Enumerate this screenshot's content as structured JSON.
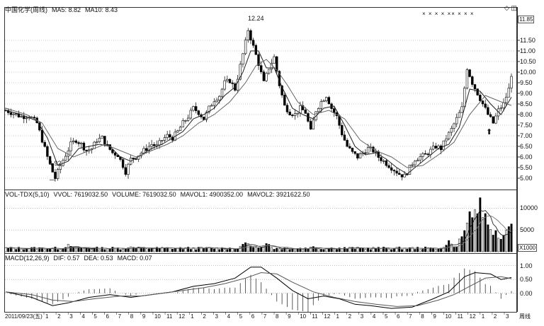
{
  "price_panel": {
    "title": "中国化学(周线)",
    "ma5": "MA5: 8.82",
    "ma10": "MA10: 8.43",
    "high_label": "12.24",
    "low_label": "4.92",
    "last_label": "11.85",
    "corner_icons": "◇ ◫",
    "markers": "× × × × ×× × × ×",
    "y_ticks": [
      "11.50",
      "11.00",
      "10.50",
      "10.00",
      "9.50",
      "9.00",
      "8.50",
      "8.00",
      "7.50",
      "7.00",
      "6.50",
      "6.00",
      "5.50",
      "5.00"
    ]
  },
  "volume_panel": {
    "title": "VOL-TDX(5,10)",
    "vvol": "VVOL: 7619032.50",
    "volume": "VOLUME: 7619032.50",
    "mavol1": "MAVOL1: 4900352.00",
    "mavol2": "MAVOL2: 3921622.50",
    "y_ticks": [
      "10000",
      "5000"
    ],
    "unit": "X1000"
  },
  "macd_panel": {
    "title": "MACD(12,26,9)",
    "dif": "DIF: 0.57",
    "dea": "DEA: 0.53",
    "macd": "MACD: 0.07",
    "y_ticks": [
      "1.00",
      "0.50",
      "0.00"
    ]
  },
  "x_axis": {
    "start": "2011/09/23(五)",
    "months": [
      "1",
      "2",
      "3",
      "4",
      "5",
      "6",
      "7",
      "8",
      "9",
      "10",
      "11",
      "12",
      "1",
      "2",
      "3",
      "4",
      "5",
      "6",
      "7",
      "8",
      "9",
      "10",
      "11",
      "12",
      "1",
      "2",
      "3",
      "4",
      "5",
      "6",
      "7",
      "8",
      "9",
      "10",
      "11",
      "12",
      "1",
      "2",
      "3"
    ],
    "period": "周线"
  },
  "chart_data": [
    {
      "type": "candlestick",
      "title": "中国化学(周线)",
      "series": [
        {
          "name": "MA5",
          "last": 8.82
        },
        {
          "name": "MA10",
          "last": 8.43
        }
      ],
      "annotations": {
        "high": 12.24,
        "low": 4.92
      },
      "ylim": [
        4.6,
        12.4
      ],
      "close_path": [
        [
          0,
          8.2
        ],
        [
          3,
          8.05
        ],
        [
          6,
          7.9
        ],
        [
          9,
          7.95
        ],
        [
          12,
          7.6
        ],
        [
          14,
          6.8
        ],
        [
          16,
          6.0
        ],
        [
          18,
          5.3
        ],
        [
          19,
          5.0
        ],
        [
          21,
          5.6
        ],
        [
          23,
          6.1
        ],
        [
          25,
          6.6
        ],
        [
          27,
          6.8
        ],
        [
          29,
          6.6
        ],
        [
          31,
          6.3
        ],
        [
          33,
          6.4
        ],
        [
          35,
          6.8
        ],
        [
          37,
          6.9
        ],
        [
          39,
          6.5
        ],
        [
          41,
          6.2
        ],
        [
          43,
          6.1
        ],
        [
          45,
          5.6
        ],
        [
          46,
          5.3
        ],
        [
          48,
          5.9
        ],
        [
          50,
          6.0
        ],
        [
          52,
          6.2
        ],
        [
          54,
          6.4
        ],
        [
          56,
          6.6
        ],
        [
          58,
          6.5
        ],
        [
          60,
          6.8
        ],
        [
          62,
          7.0
        ],
        [
          64,
          6.9
        ],
        [
          66,
          7.2
        ],
        [
          68,
          7.6
        ],
        [
          70,
          7.9
        ],
        [
          72,
          8.3
        ],
        [
          74,
          8.1
        ],
        [
          76,
          7.8
        ],
        [
          78,
          8.3
        ],
        [
          80,
          8.7
        ],
        [
          82,
          8.9
        ],
        [
          84,
          9.5
        ],
        [
          86,
          9.6
        ],
        [
          88,
          9.2
        ],
        [
          90,
          10.3
        ],
        [
          92,
          11.4
        ],
        [
          93,
          12.0
        ],
        [
          95,
          11.2
        ],
        [
          97,
          10.4
        ],
        [
          99,
          9.5
        ],
        [
          101,
          10.2
        ],
        [
          103,
          10.7
        ],
        [
          105,
          9.4
        ],
        [
          107,
          8.4
        ],
        [
          109,
          8.1
        ],
        [
          111,
          8.0
        ],
        [
          113,
          8.3
        ],
        [
          115,
          8.1
        ],
        [
          117,
          7.2
        ],
        [
          119,
          8.2
        ],
        [
          121,
          8.6
        ],
        [
          123,
          8.9
        ],
        [
          125,
          8.3
        ],
        [
          127,
          7.9
        ],
        [
          129,
          7.1
        ],
        [
          131,
          6.5
        ],
        [
          133,
          6.2
        ],
        [
          135,
          6.0
        ],
        [
          137,
          6.2
        ],
        [
          139,
          6.4
        ],
        [
          141,
          6.3
        ],
        [
          143,
          6.0
        ],
        [
          145,
          5.8
        ],
        [
          147,
          5.6
        ],
        [
          149,
          5.4
        ],
        [
          151,
          5.2
        ],
        [
          153,
          5.1
        ],
        [
          155,
          5.5
        ],
        [
          157,
          5.9
        ],
        [
          159,
          6.0
        ],
        [
          161,
          6.1
        ],
        [
          163,
          6.3
        ],
        [
          165,
          6.5
        ],
        [
          167,
          6.4
        ],
        [
          169,
          6.9
        ],
        [
          171,
          7.3
        ],
        [
          173,
          7.8
        ],
        [
          175,
          8.3
        ],
        [
          177,
          10.2
        ],
        [
          179,
          9.5
        ],
        [
          181,
          9.0
        ],
        [
          183,
          8.5
        ],
        [
          185,
          8.0
        ],
        [
          187,
          7.6
        ],
        [
          189,
          8.2
        ],
        [
          191,
          8.5
        ],
        [
          193,
          9.2
        ],
        [
          194,
          9.9
        ]
      ],
      "ma5_path": [
        [
          0,
          8.2
        ],
        [
          6,
          8.0
        ],
        [
          12,
          7.7
        ],
        [
          16,
          6.9
        ],
        [
          20,
          5.6
        ],
        [
          24,
          5.8
        ],
        [
          28,
          6.4
        ],
        [
          32,
          6.5
        ],
        [
          36,
          6.6
        ],
        [
          40,
          6.5
        ],
        [
          44,
          6.0
        ],
        [
          48,
          5.8
        ],
        [
          52,
          6.1
        ],
        [
          56,
          6.4
        ],
        [
          60,
          6.6
        ],
        [
          64,
          6.9
        ],
        [
          68,
          7.2
        ],
        [
          72,
          7.8
        ],
        [
          76,
          8.0
        ],
        [
          80,
          8.3
        ],
        [
          84,
          8.9
        ],
        [
          88,
          9.3
        ],
        [
          91,
          10.0
        ],
        [
          94,
          11.0
        ],
        [
          97,
          11.0
        ],
        [
          100,
          10.2
        ],
        [
          103,
          10.2
        ],
        [
          106,
          9.3
        ],
        [
          110,
          8.3
        ],
        [
          114,
          8.0
        ],
        [
          118,
          7.8
        ],
        [
          122,
          8.3
        ],
        [
          126,
          8.4
        ],
        [
          130,
          7.5
        ],
        [
          134,
          6.5
        ],
        [
          138,
          6.1
        ],
        [
          142,
          6.2
        ],
        [
          146,
          5.9
        ],
        [
          150,
          5.5
        ],
        [
          154,
          5.2
        ],
        [
          158,
          5.6
        ],
        [
          162,
          6.0
        ],
        [
          166,
          6.4
        ],
        [
          170,
          6.6
        ],
        [
          174,
          7.4
        ],
        [
          178,
          9.2
        ],
        [
          182,
          9.1
        ],
        [
          186,
          8.5
        ],
        [
          190,
          8.0
        ],
        [
          194,
          8.82
        ]
      ],
      "ma10_path": [
        [
          0,
          8.3
        ],
        [
          8,
          8.0
        ],
        [
          14,
          7.6
        ],
        [
          20,
          6.4
        ],
        [
          26,
          6.0
        ],
        [
          32,
          6.3
        ],
        [
          38,
          6.6
        ],
        [
          44,
          6.3
        ],
        [
          50,
          6.0
        ],
        [
          56,
          6.3
        ],
        [
          62,
          6.6
        ],
        [
          68,
          7.0
        ],
        [
          74,
          7.6
        ],
        [
          80,
          8.0
        ],
        [
          86,
          8.6
        ],
        [
          92,
          9.5
        ],
        [
          96,
          10.3
        ],
        [
          100,
          10.6
        ],
        [
          104,
          10.1
        ],
        [
          108,
          9.4
        ],
        [
          112,
          8.6
        ],
        [
          118,
          8.0
        ],
        [
          124,
          8.2
        ],
        [
          130,
          7.8
        ],
        [
          136,
          6.8
        ],
        [
          142,
          6.3
        ],
        [
          148,
          6.0
        ],
        [
          154,
          5.5
        ],
        [
          160,
          5.6
        ],
        [
          166,
          6.1
        ],
        [
          172,
          6.7
        ],
        [
          178,
          8.0
        ],
        [
          184,
          8.9
        ],
        [
          190,
          8.6
        ],
        [
          194,
          8.43
        ]
      ]
    },
    {
      "type": "bar",
      "title": "VOL-TDX(5,10)",
      "unit": "X1000",
      "ylim": [
        0,
        12000
      ],
      "base_level": 800,
      "peaks": [
        [
          24,
          1600
        ],
        [
          48,
          1300
        ],
        [
          92,
          2600
        ],
        [
          100,
          2200
        ],
        [
          118,
          1400
        ],
        [
          170,
          2500
        ],
        [
          176,
          5500
        ],
        [
          178,
          9000
        ],
        [
          180,
          12000
        ],
        [
          182,
          11500
        ],
        [
          184,
          8000
        ],
        [
          186,
          6000
        ],
        [
          188,
          5000
        ],
        [
          190,
          3000
        ],
        [
          192,
          5000
        ],
        [
          194,
          7600
        ]
      ],
      "mavol1_last": 4900352,
      "mavol2_last": 3921622.5
    },
    {
      "type": "line",
      "title": "MACD(12,26,9)",
      "ylim": [
        -0.65,
        1.25
      ],
      "dif_path": [
        [
          0,
          0.05
        ],
        [
          10,
          -0.15
        ],
        [
          18,
          -0.45
        ],
        [
          24,
          -0.35
        ],
        [
          32,
          -0.15
        ],
        [
          40,
          -0.05
        ],
        [
          48,
          -0.15
        ],
        [
          56,
          -0.05
        ],
        [
          64,
          0.05
        ],
        [
          72,
          0.25
        ],
        [
          80,
          0.35
        ],
        [
          88,
          0.55
        ],
        [
          94,
          0.95
        ],
        [
          98,
          0.95
        ],
        [
          104,
          0.55
        ],
        [
          110,
          0.1
        ],
        [
          116,
          -0.2
        ],
        [
          122,
          -0.1
        ],
        [
          128,
          -0.2
        ],
        [
          134,
          -0.4
        ],
        [
          140,
          -0.45
        ],
        [
          148,
          -0.55
        ],
        [
          156,
          -0.5
        ],
        [
          164,
          -0.2
        ],
        [
          170,
          0.05
        ],
        [
          176,
          0.6
        ],
        [
          180,
          0.75
        ],
        [
          186,
          0.7
        ],
        [
          190,
          0.5
        ],
        [
          194,
          0.57
        ]
      ],
      "dea_path": [
        [
          0,
          0.05
        ],
        [
          10,
          -0.05
        ],
        [
          18,
          -0.25
        ],
        [
          26,
          -0.3
        ],
        [
          34,
          -0.2
        ],
        [
          44,
          -0.1
        ],
        [
          52,
          -0.1
        ],
        [
          60,
          0.0
        ],
        [
          68,
          0.1
        ],
        [
          76,
          0.2
        ],
        [
          84,
          0.35
        ],
        [
          92,
          0.55
        ],
        [
          98,
          0.75
        ],
        [
          104,
          0.7
        ],
        [
          110,
          0.4
        ],
        [
          118,
          0.05
        ],
        [
          126,
          -0.15
        ],
        [
          134,
          -0.3
        ],
        [
          142,
          -0.4
        ],
        [
          150,
          -0.48
        ],
        [
          158,
          -0.45
        ],
        [
          166,
          -0.25
        ],
        [
          172,
          -0.05
        ],
        [
          178,
          0.25
        ],
        [
          184,
          0.55
        ],
        [
          190,
          0.6
        ],
        [
          194,
          0.53
        ]
      ]
    }
  ]
}
